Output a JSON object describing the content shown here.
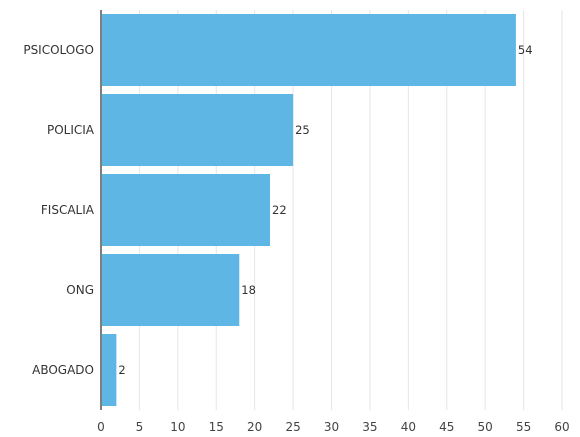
{
  "chart_data": {
    "type": "bar",
    "orientation": "horizontal",
    "categories": [
      "PSICOLOGO",
      "POLICIA",
      "FISCALIA",
      "ONG",
      "ABOGADO"
    ],
    "values": [
      54,
      25,
      22,
      18,
      2
    ],
    "data_labels": [
      "54",
      "25",
      "22",
      "18",
      "2"
    ],
    "xlim": [
      0,
      60
    ],
    "x_ticks": [
      0,
      5,
      10,
      15,
      20,
      25,
      30,
      35,
      40,
      45,
      50,
      55,
      60
    ],
    "x_tick_labels": [
      "0",
      "5",
      "10",
      "15",
      "20",
      "25",
      "30",
      "35",
      "40",
      "45",
      "50",
      "55",
      "60"
    ],
    "grid": "vertical",
    "legend": "none",
    "bar_color": "#5eb6e4",
    "grid_color": "#e6e6e6",
    "axis_color": "#555555"
  }
}
